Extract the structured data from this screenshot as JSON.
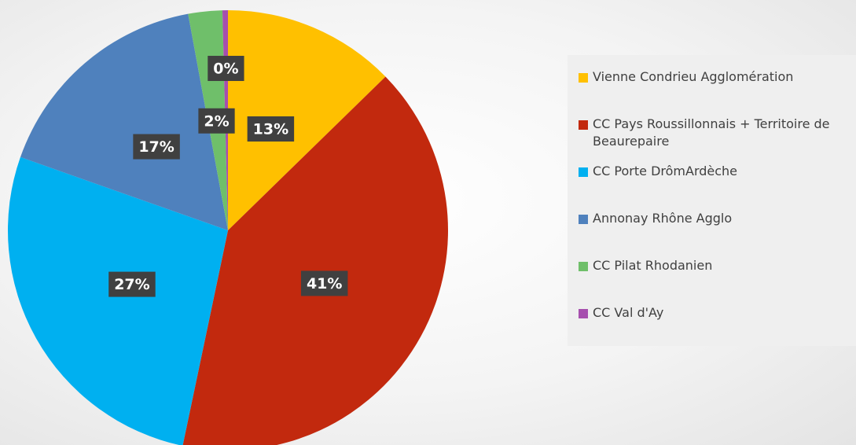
{
  "chart_data": {
    "type": "pie",
    "legend": "right",
    "categories": [
      "Vienne Condrieu Agglomération",
      "CC Pays Roussillonnais + Territoire de Beaurepaire",
      "CC Porte DrômArdèche",
      "Annonay Rhône Agglo",
      "CC Pilat Rhodanien",
      "CC Val d'Ay"
    ],
    "values": [
      12.7,
      40.6,
      27.1,
      16.7,
      2.5,
      0.4
    ],
    "value_labels": [
      "13%",
      "41%",
      "27%",
      "17%",
      "2%",
      "0%"
    ],
    "colors": [
      "#ffc000",
      "#c2290e",
      "#00b0f0",
      "#4f81bd",
      "#6fbf6a",
      "#a64fae"
    ]
  }
}
